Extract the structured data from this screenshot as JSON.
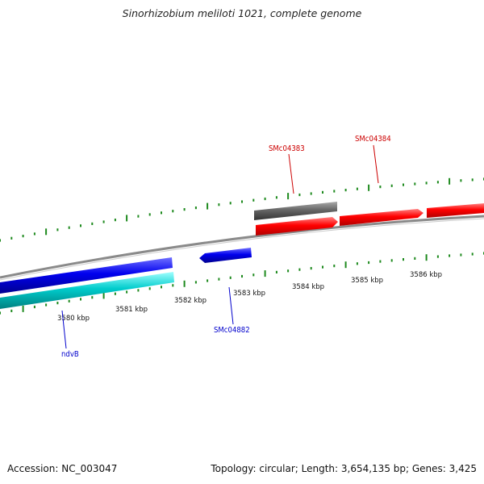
{
  "title": "Sinorhizobium meliloti 1021, complete genome",
  "footer": {
    "accession": "Accession: NC_003047",
    "summary": "Topology: circular; Length: 3,654,135 bp; Genes: 3,425"
  },
  "colors": {
    "forward_gene": "#ff0000",
    "reverse_gene": "#0000ee",
    "cds_reverse": "#00cccc",
    "pseudo_gene": "#666666",
    "backbone": "#888888",
    "ticks": "#1e8a1e",
    "forward_label": "#cc0000",
    "reverse_label": "#0000cc"
  },
  "tick_labels": [
    "3580 kbp",
    "3581 kbp",
    "3582 kbp",
    "3583 kbp",
    "3584 kbp",
    "3585 kbp",
    "3586 kbp"
  ],
  "genes": [
    {
      "name": "SMc04383",
      "strand": "forward"
    },
    {
      "name": "SMc04384",
      "strand": "forward"
    },
    {
      "name": "SMc04882",
      "strand": "reverse"
    },
    {
      "name": "ndvB",
      "strand": "reverse"
    }
  ]
}
